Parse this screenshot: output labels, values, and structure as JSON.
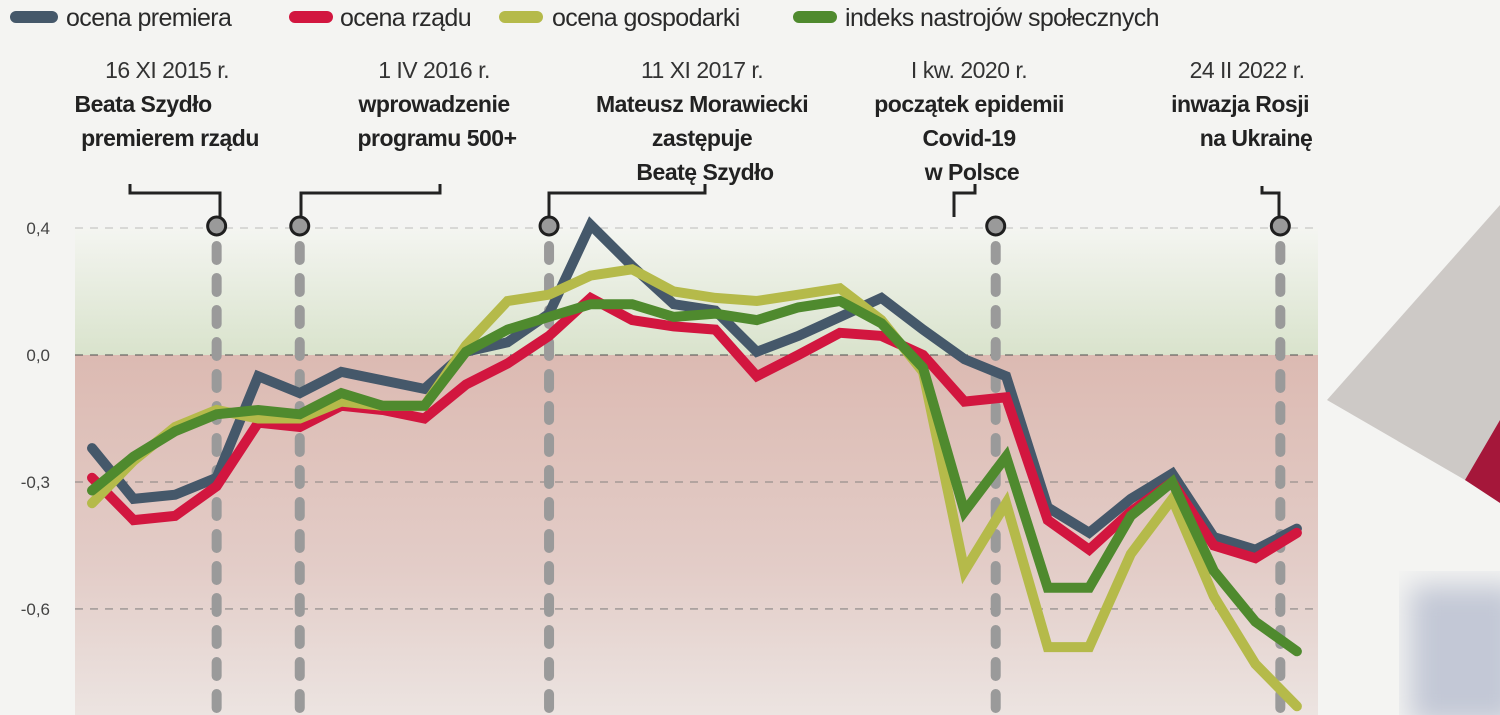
{
  "chart_data": {
    "type": "line",
    "title": "",
    "xlabel": "",
    "ylabel": "",
    "y_ticks": [
      "0,4",
      "0,0",
      "-0,3",
      "-0,6"
    ],
    "y_tick_values": [
      0.4,
      0.0,
      -0.3,
      -0.6
    ],
    "grid": true,
    "legend_position": "top",
    "point_count": 30,
    "series": [
      {
        "name": "ocena premiera",
        "color": "#45586a",
        "values": [
          -0.22,
          -0.34,
          -0.33,
          -0.29,
          -0.05,
          -0.09,
          -0.04,
          -0.06,
          -0.08,
          0.01,
          0.04,
          0.13,
          0.41,
          0.28,
          0.16,
          0.14,
          0.01,
          0.06,
          0.12,
          0.18,
          0.08,
          -0.01,
          -0.05,
          -0.36,
          -0.42,
          -0.34,
          -0.28,
          -0.43,
          -0.46,
          -0.41
        ]
      },
      {
        "name": "ocena rządu",
        "color": "#d2163f",
        "values": [
          -0.29,
          -0.39,
          -0.38,
          -0.31,
          -0.16,
          -0.17,
          -0.12,
          -0.13,
          -0.15,
          -0.07,
          -0.02,
          0.06,
          0.18,
          0.11,
          0.09,
          0.08,
          -0.05,
          0.0,
          0.07,
          0.06,
          0.0,
          -0.11,
          -0.1,
          -0.39,
          -0.46,
          -0.37,
          -0.3,
          -0.45,
          -0.48,
          -0.42
        ]
      },
      {
        "name": "ocena gospodarki",
        "color": "#b5ba4a",
        "values": [
          -0.35,
          -0.25,
          -0.17,
          -0.13,
          -0.15,
          -0.15,
          -0.11,
          -0.12,
          -0.12,
          0.03,
          0.17,
          0.19,
          0.25,
          0.27,
          0.2,
          0.18,
          0.17,
          0.19,
          0.21,
          0.11,
          -0.04,
          -0.51,
          -0.35,
          -0.69,
          -0.69,
          -0.47,
          -0.34,
          -0.57,
          -0.73,
          -0.83
        ]
      },
      {
        "name": "indeks nastrojów społecznych",
        "color": "#4f8a2e",
        "values": [
          -0.32,
          -0.24,
          -0.18,
          -0.14,
          -0.13,
          -0.14,
          -0.09,
          -0.12,
          -0.12,
          0.01,
          0.08,
          0.12,
          0.16,
          0.16,
          0.12,
          0.13,
          0.11,
          0.15,
          0.17,
          0.1,
          -0.03,
          -0.37,
          -0.24,
          -0.55,
          -0.55,
          -0.38,
          -0.3,
          -0.51,
          -0.63,
          -0.7
        ]
      }
    ],
    "annotations": [
      {
        "at": 3,
        "date": "16 XI 2015 r.",
        "lines": [
          "Beata Szydło",
          "premierem rządu"
        ]
      },
      {
        "at": 5,
        "date": "1 IV 2016 r.",
        "lines": [
          "wprowadzenie",
          "programu 500+"
        ]
      },
      {
        "at": 11,
        "date": "11 XI 2017 r.",
        "lines": [
          "Mateusz Morawiecki",
          "zastępuje",
          "Beatę Szydło"
        ]
      },
      {
        "at": 21.75,
        "date": "I kw. 2020 r.",
        "lines": [
          "początek epidemii",
          "Covid-19",
          "w Polsce"
        ]
      },
      {
        "at": 28.6,
        "date": "24 II 2022 r.",
        "lines": [
          "inwazja Rosji",
          "na Ukrainę"
        ]
      }
    ]
  }
}
